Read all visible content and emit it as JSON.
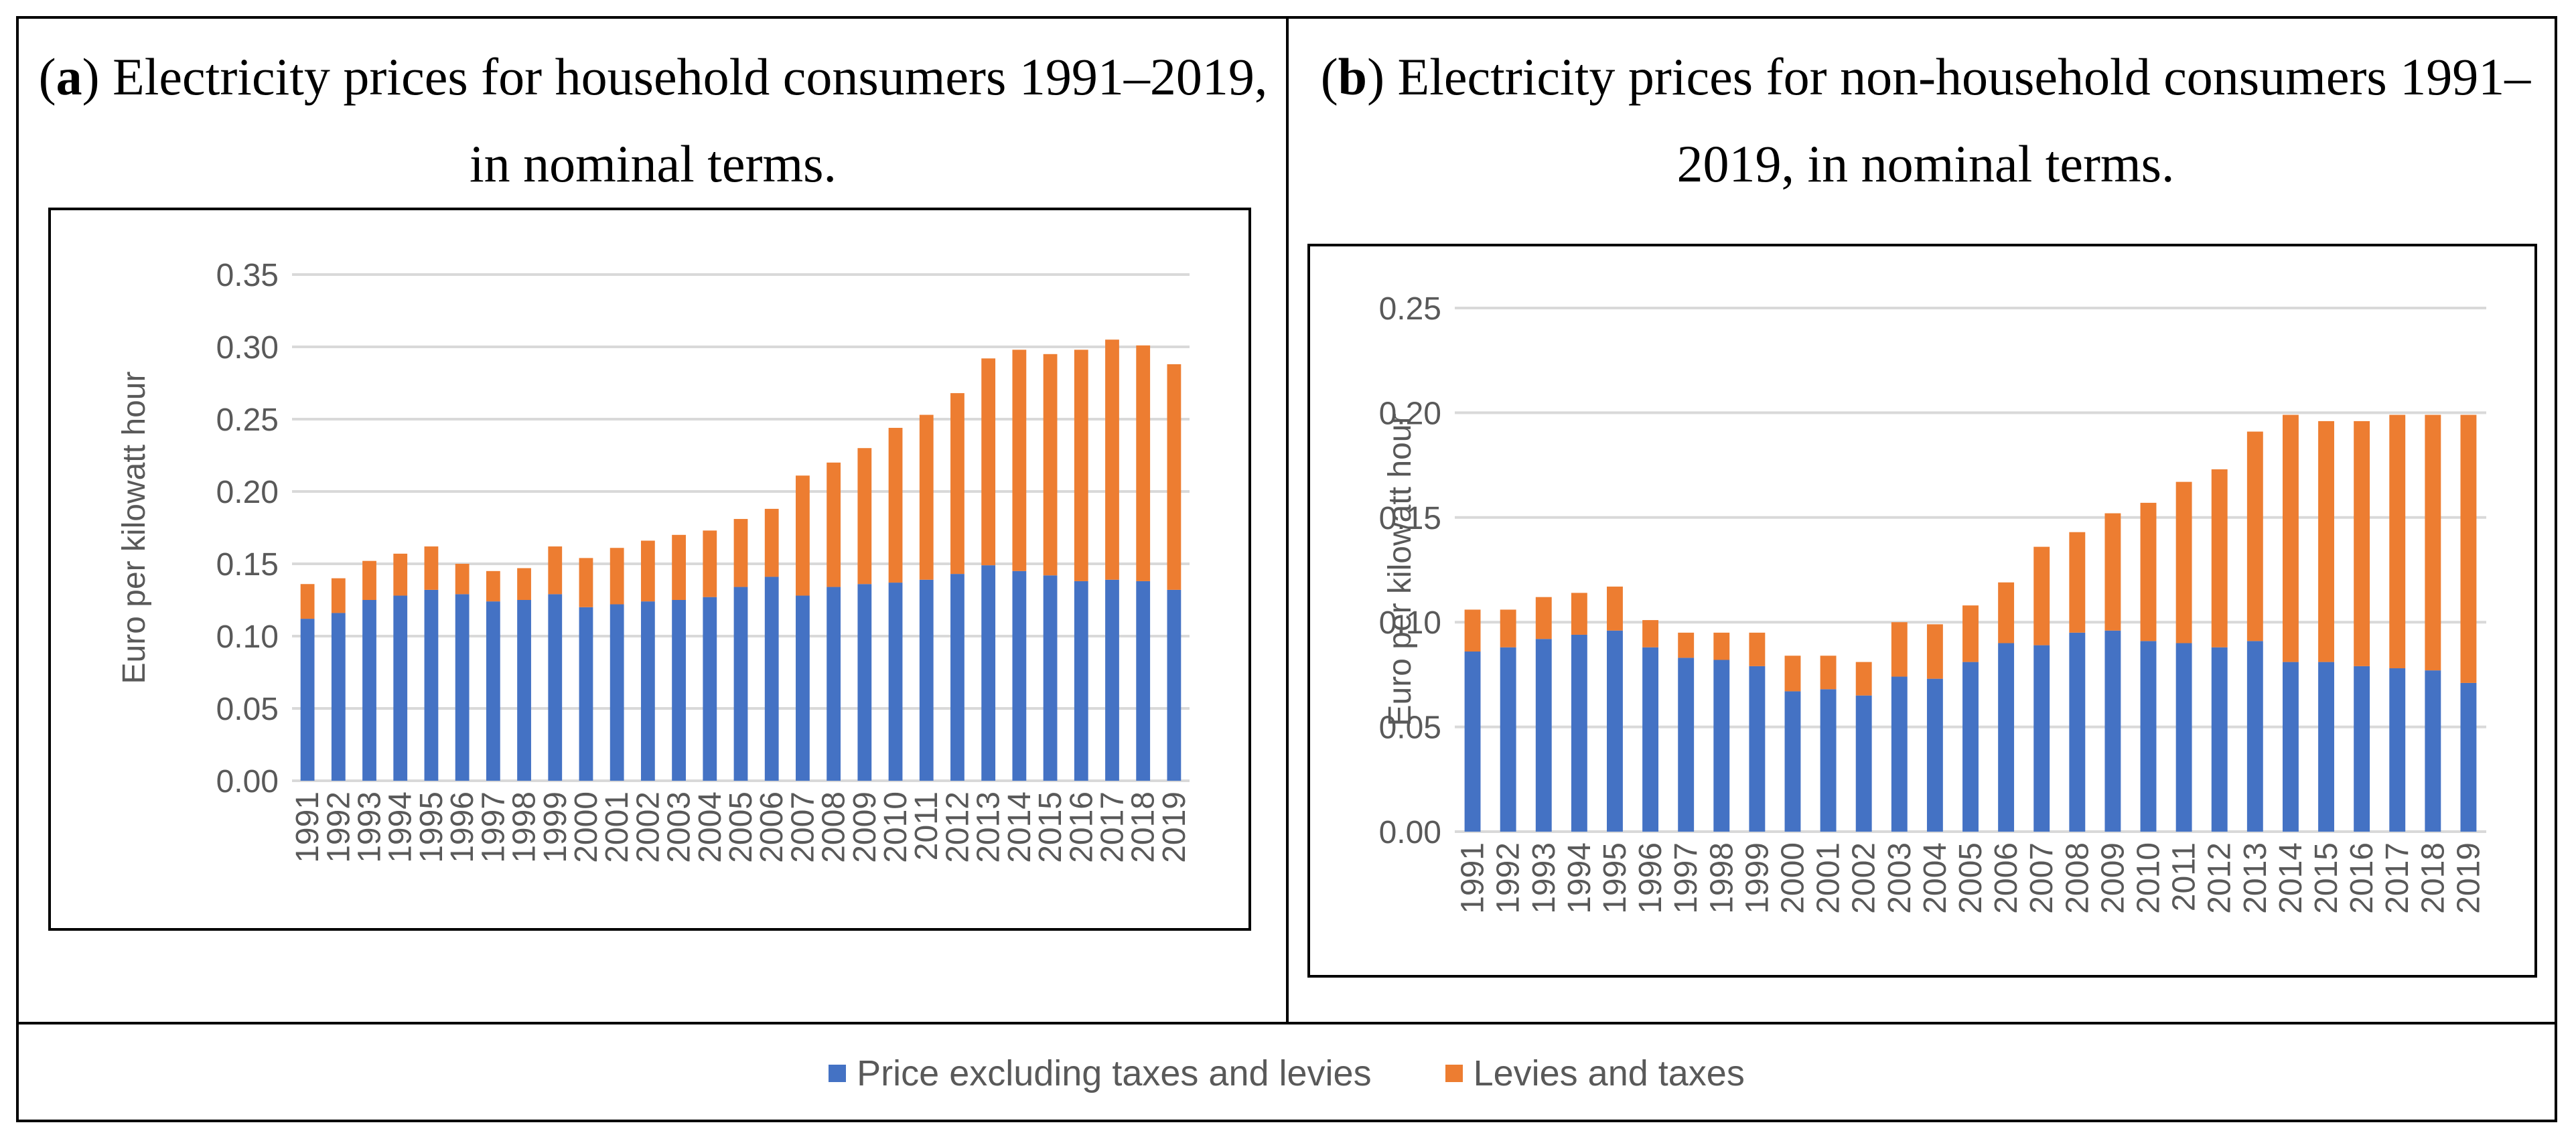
{
  "colors": {
    "base": "#4472C4",
    "tax": "#ED7D31",
    "grid": "#D9D9D9",
    "axis_text": "#595959"
  },
  "legend": {
    "items": [
      {
        "label": "Price excluding taxes and levies",
        "color": "#4472C4"
      },
      {
        "label": "Levies and taxes",
        "color": "#ED7D31"
      }
    ]
  },
  "panels": {
    "a": {
      "letter": "a",
      "title": "Electricity prices for household consumers 1991–2019, in nominal terms."
    },
    "b": {
      "letter": "b",
      "title": "Electricity prices for non-household consumers 1991–2019, in nominal terms."
    }
  },
  "chart_data": [
    {
      "type": "bar",
      "stacked": true,
      "title": "(a) Electricity prices for household consumers 1991–2019, in nominal terms.",
      "xlabel": "",
      "ylabel": "Euro per kilowatt hour",
      "ylim": [
        0,
        0.35
      ],
      "yticks": [
        "0.00",
        "0.05",
        "0.10",
        "0.15",
        "0.20",
        "0.25",
        "0.30",
        "0.35"
      ],
      "grid": true,
      "categories": [
        "1991",
        "1992",
        "1993",
        "1994",
        "1995",
        "1996",
        "1997",
        "1998",
        "1999",
        "2000",
        "2001",
        "2002",
        "2003",
        "2004",
        "2005",
        "2006",
        "2007",
        "2008",
        "2009",
        "2010",
        "2011",
        "2012",
        "2013",
        "2014",
        "2015",
        "2016",
        "2017",
        "2018",
        "2019"
      ],
      "series": [
        {
          "name": "Price excluding taxes and levies",
          "values": [
            0.112,
            0.116,
            0.125,
            0.128,
            0.132,
            0.129,
            0.124,
            0.125,
            0.129,
            0.12,
            0.122,
            0.124,
            0.125,
            0.127,
            0.134,
            0.141,
            0.128,
            0.134,
            0.136,
            0.137,
            0.139,
            0.143,
            0.149,
            0.145,
            0.142,
            0.138,
            0.139,
            0.138,
            0.132
          ]
        },
        {
          "name": "Levies and taxes",
          "values": [
            0.024,
            0.024,
            0.027,
            0.029,
            0.03,
            0.021,
            0.021,
            0.022,
            0.033,
            0.034,
            0.039,
            0.042,
            0.045,
            0.046,
            0.047,
            0.047,
            0.083,
            0.086,
            0.094,
            0.107,
            0.114,
            0.125,
            0.143,
            0.153,
            0.153,
            0.16,
            0.166,
            0.163,
            0.156
          ]
        }
      ]
    },
    {
      "type": "bar",
      "stacked": true,
      "title": "(b) Electricity prices for non-household consumers 1991–2019, in nominal terms.",
      "xlabel": "",
      "ylabel": "Euro per kilowatt hour",
      "ylim": [
        0,
        0.25
      ],
      "yticks": [
        "0.00",
        "0.05",
        "0.10",
        "0.15",
        "0.20",
        "0.25"
      ],
      "grid": true,
      "categories": [
        "1991",
        "1992",
        "1993",
        "1994",
        "1995",
        "1996",
        "1997",
        "1998",
        "1999",
        "2000",
        "2001",
        "2002",
        "2003",
        "2004",
        "2005",
        "2006",
        "2007",
        "2008",
        "2009",
        "2010",
        "2011",
        "2012",
        "2013",
        "2014",
        "2015",
        "2016",
        "2017",
        "2018",
        "2019"
      ],
      "series": [
        {
          "name": "Price excluding taxes and levies",
          "values": [
            0.086,
            0.088,
            0.092,
            0.094,
            0.096,
            0.088,
            0.083,
            0.082,
            0.079,
            0.067,
            0.068,
            0.065,
            0.074,
            0.073,
            0.081,
            0.09,
            0.089,
            0.095,
            0.096,
            0.091,
            0.09,
            0.088,
            0.091,
            0.081,
            0.081,
            0.079,
            0.078,
            0.077,
            0.071
          ]
        },
        {
          "name": "Levies and taxes",
          "values": [
            0.02,
            0.018,
            0.02,
            0.02,
            0.021,
            0.013,
            0.012,
            0.013,
            0.016,
            0.017,
            0.016,
            0.016,
            0.026,
            0.026,
            0.027,
            0.029,
            0.047,
            0.048,
            0.056,
            0.066,
            0.077,
            0.085,
            0.1,
            0.118,
            0.115,
            0.117,
            0.121,
            0.122,
            0.128
          ]
        }
      ]
    }
  ]
}
